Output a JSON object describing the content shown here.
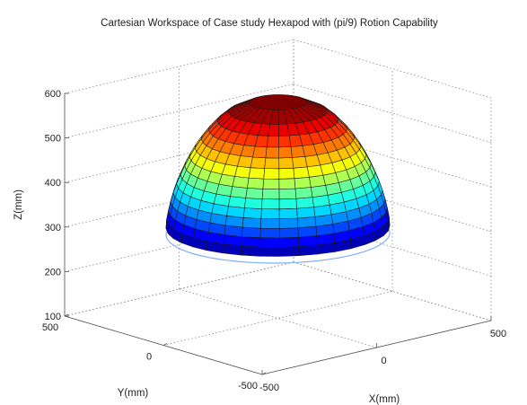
{
  "chart_data": {
    "type": "surface3d",
    "title": "Cartesian Workspace of Case study Hexapod with (pi/9) Rotion Capability",
    "xlabel": "X(mm)",
    "ylabel": "Y(mm)",
    "zlabel": "Z(mm)",
    "xlim": [
      -500,
      500
    ],
    "ylim": [
      -500,
      500
    ],
    "zlim": [
      100,
      600
    ],
    "x_ticks": [
      "-500",
      "0",
      "500"
    ],
    "y_ticks": [
      "-500",
      "0",
      "500"
    ],
    "z_ticks": [
      "100",
      "200",
      "300",
      "400",
      "500",
      "600"
    ],
    "grid": true,
    "colormap": "jet",
    "surface": {
      "shape": "dome",
      "base_radius": 370,
      "top_radius": 95,
      "z_bottom": 305,
      "z_top": 585,
      "z_levels": [
        305,
        325,
        345,
        365,
        385,
        405,
        425,
        445,
        465,
        485,
        505,
        525,
        545,
        565,
        585
      ],
      "radii": [
        370,
        368,
        362,
        355,
        346,
        335,
        322,
        308,
        292,
        274,
        253,
        229,
        200,
        163,
        95
      ],
      "angular_segments": 36
    },
    "base_ring": {
      "z": 290,
      "radius": 370
    }
  }
}
